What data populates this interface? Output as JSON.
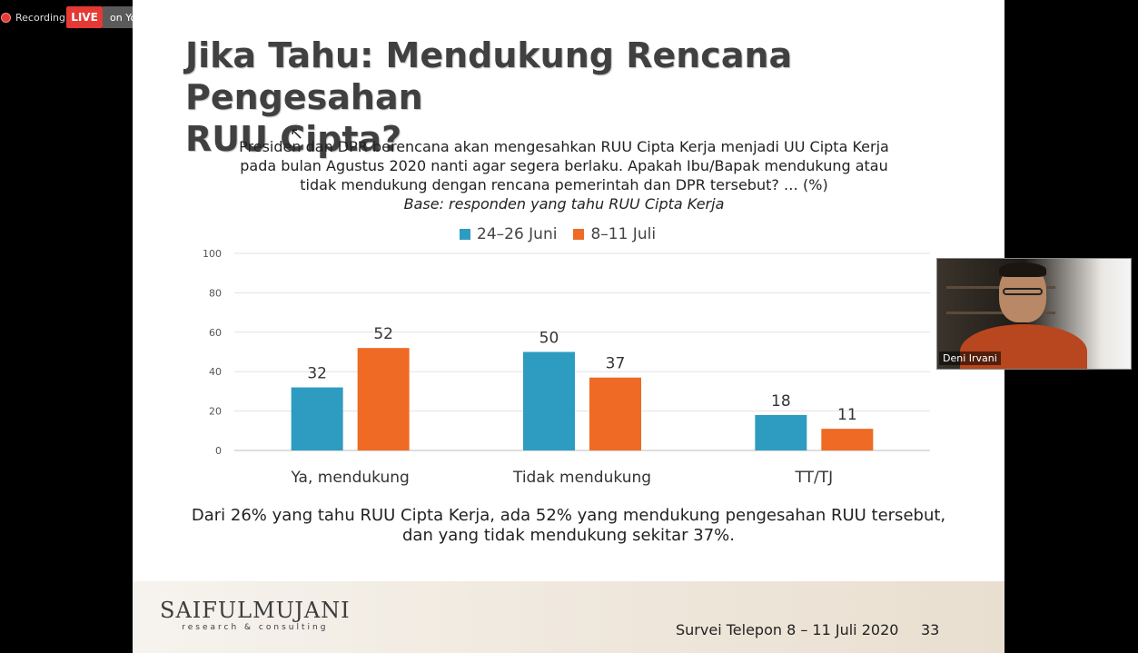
{
  "toolbar": {
    "recording_label": "Recording",
    "live_label": "LIVE",
    "destination_label": "on YouTube",
    "accent_live": "#e53935"
  },
  "slide": {
    "title_line1": "Jika Tahu: Mendukung Rencana Pengesahan",
    "title_line2": "RUU Cipta?",
    "question_line1": "Presiden dan DPR berencana akan mengesahkan RUU Cipta Kerja menjadi UU Cipta Kerja",
    "question_line2": "pada bulan Agustus 2020 nanti agar segera berlaku. Apakah Ibu/Bapak mendukung atau",
    "question_line3": "tidak mendukung dengan rencana pemerintah dan DPR tersebut? … (%)",
    "base_note": "Base: responden yang tahu RUU Cipta Kerja",
    "conclusion_line1": "Dari 26% yang tahu RUU Cipta Kerja, ada 52% yang mendukung pengesahan RUU tersebut,",
    "conclusion_line2": "dan yang tidak mendukung sekitar 37%.",
    "logo_main": "SAIFULMUJANI",
    "logo_sub": "research & consulting",
    "footer_text": "Survei Telepon 8 – 11 Juli 2020",
    "page_number": "33"
  },
  "chart_data": {
    "type": "bar",
    "categories": [
      "Ya, mendukung",
      "Tidak mendukung",
      "TT/TJ"
    ],
    "series": [
      {
        "name": "24–26 Juni",
        "values": [
          32,
          50,
          18
        ],
        "color": "#2e9cc0"
      },
      {
        "name": "8–11 Juli",
        "values": [
          52,
          37,
          11
        ],
        "color": "#ee6a25"
      }
    ],
    "yticks": [
      "0",
      "20",
      "40",
      "60",
      "80",
      "100"
    ],
    "ylim": [
      0,
      100
    ],
    "grid": true,
    "legend_position": "top-center"
  },
  "video": {
    "participant_name": "Deni Irvani"
  }
}
